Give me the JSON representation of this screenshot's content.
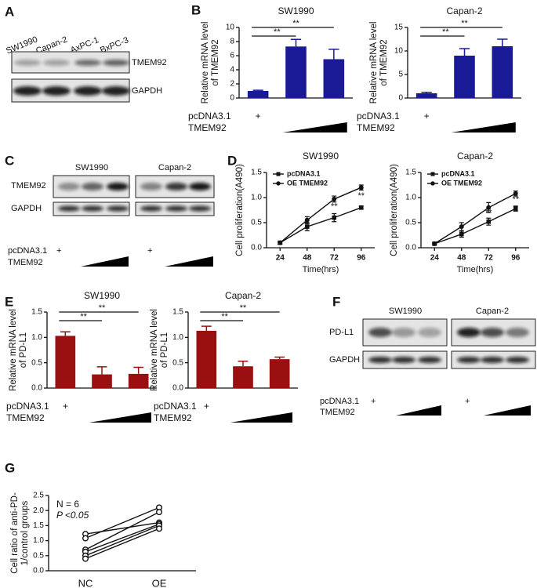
{
  "panel_labels": [
    "A",
    "B",
    "C",
    "D",
    "E",
    "F",
    "G"
  ],
  "blot_a": {
    "lanes": [
      "SW1990",
      "Capan-2",
      "AxPC-1",
      "BxPC-3"
    ],
    "bands": [
      "TMEM92",
      "GAPDH"
    ]
  },
  "blot_c": {
    "groups": [
      "SW1990",
      "Capan-2"
    ],
    "bands": [
      "TMEM92",
      "GAPDH"
    ],
    "rows": [
      "pcDNA3.1",
      "TMEM92"
    ],
    "control": [
      "+",
      "+"
    ]
  },
  "blot_f": {
    "groups": [
      "SW1990",
      "Capan-2"
    ],
    "bands": [
      "PD-L1",
      "GAPDH"
    ],
    "rows": [
      "pcDNA3.1",
      "TMEM92"
    ],
    "control": [
      "+",
      "+"
    ]
  },
  "chart_data": [
    {
      "type": "bar",
      "title": "SW1990",
      "ylabel": [
        "Relative mRNA level",
        "of TMEM92"
      ],
      "categories": [
        "+",
        null,
        null
      ],
      "row_labels": [
        "pcDNA3.1",
        "TMEM92"
      ],
      "values": [
        1.0,
        7.3,
        5.5
      ],
      "errors": [
        0.1,
        1.0,
        1.4
      ],
      "color": "#1a1a96",
      "ylim": [
        0,
        10
      ],
      "yticks": [
        0,
        2,
        4,
        6,
        8,
        10
      ],
      "annotations": [
        "**",
        "**"
      ]
    },
    {
      "type": "bar",
      "title": "Capan-2",
      "ylabel": [
        "Relative mRNA level",
        "of TMEM92"
      ],
      "categories": [
        "+",
        null,
        null
      ],
      "row_labels": [
        "pcDNA3.1",
        "TMEM92"
      ],
      "values": [
        1.0,
        9.0,
        11.0
      ],
      "errors": [
        0.2,
        1.5,
        1.5
      ],
      "color": "#1a1a96",
      "ylim": [
        0,
        15
      ],
      "yticks": [
        0,
        5,
        10,
        15
      ],
      "annotations": [
        "**",
        "**"
      ]
    },
    {
      "type": "line",
      "title": "SW1990",
      "xlabel": "Time(hrs)",
      "ylabel": [
        "Cell proliferation(A490)"
      ],
      "x": [
        24,
        48,
        72,
        96
      ],
      "series": [
        {
          "name": "pcDNA3.1",
          "color": "#111111",
          "marker": "square",
          "values": [
            0.1,
            0.42,
            0.6,
            0.8
          ],
          "errors": [
            0.03,
            0.08,
            0.08,
            0.03
          ]
        },
        {
          "name": "OE TMEM92",
          "color": "#111111",
          "marker": "circle",
          "values": [
            0.1,
            0.55,
            0.97,
            1.2
          ],
          "errors": [
            0.03,
            0.07,
            0.06,
            0.05
          ]
        }
      ],
      "xlim": [
        12,
        108
      ],
      "xticks": [
        24,
        48,
        72,
        96
      ],
      "ylim": [
        0,
        1.5
      ],
      "yticks": [
        {
          "value": 0,
          "label": "0.0"
        },
        0.5,
        {
          "value": 1,
          "label": "1.0"
        },
        1.5
      ],
      "legend": "upper-left",
      "annotations": [
        "**",
        "**"
      ]
    },
    {
      "type": "line",
      "title": "Capan-2",
      "xlabel": "Time(hrs)",
      "ylabel": [
        "Cell proliferation(A490)"
      ],
      "x": [
        24,
        48,
        72,
        96
      ],
      "series": [
        {
          "name": "pcDNA3.1",
          "color": "#111111",
          "marker": "square",
          "values": [
            0.08,
            0.27,
            0.52,
            0.78
          ],
          "errors": [
            0.02,
            0.06,
            0.07,
            0.05
          ]
        },
        {
          "name": "OE TMEM92",
          "color": "#111111",
          "marker": "circle",
          "values": [
            0.08,
            0.42,
            0.8,
            1.08
          ],
          "errors": [
            0.02,
            0.08,
            0.1,
            0.05
          ]
        }
      ],
      "xlim": [
        12,
        108
      ],
      "xticks": [
        24,
        48,
        72,
        96
      ],
      "ylim": [
        0,
        1.5
      ],
      "yticks": [
        {
          "value": 0,
          "label": "0.0"
        },
        0.5,
        {
          "value": 1,
          "label": "1.0"
        },
        1.5
      ],
      "legend": "upper-left",
      "annotations": [
        "**",
        "**"
      ]
    },
    {
      "type": "bar",
      "title": "SW1990",
      "ylabel": [
        "Relative mRNA level",
        "of PD-L1"
      ],
      "categories": [
        "+",
        null,
        null
      ],
      "row_labels": [
        "pcDNA3.1",
        "TMEM92"
      ],
      "values": [
        1.03,
        0.27,
        0.28
      ],
      "errors": [
        0.08,
        0.15,
        0.13
      ],
      "color": "#9a1010",
      "ylim": [
        0,
        1.5
      ],
      "yticks": [
        {
          "value": 0,
          "label": "0.0"
        },
        0.5,
        {
          "value": 1,
          "label": "1.0"
        },
        1.5
      ],
      "annotations": [
        "**",
        "**"
      ]
    },
    {
      "type": "bar",
      "title": "Capan-2",
      "ylabel": [
        "Relative mRNA level",
        "of PD-L1"
      ],
      "categories": [
        "+",
        null,
        null
      ],
      "row_labels": [
        "pcDNA3.1",
        "TMEM92"
      ],
      "values": [
        1.13,
        0.43,
        0.57
      ],
      "errors": [
        0.09,
        0.1,
        0.04
      ],
      "color": "#9a1010",
      "ylim": [
        0,
        1.5
      ],
      "yticks": [
        {
          "value": 0,
          "label": "0.0"
        },
        0.5,
        {
          "value": 1,
          "label": "1.0"
        },
        1.5
      ],
      "annotations": [
        "**",
        "**"
      ]
    },
    {
      "type": "line",
      "ylabel": [
        "Cell ratio of anti-PD-",
        "1/control groups"
      ],
      "categories": [
        "NC",
        "OE"
      ],
      "series": [
        {
          "color": "#111111",
          "values": [
            1.22,
            1.6
          ]
        },
        {
          "color": "#111111",
          "values": [
            1.08,
            2.1
          ]
        },
        {
          "color": "#111111",
          "values": [
            0.7,
            1.95
          ]
        },
        {
          "color": "#111111",
          "values": [
            0.63,
            1.55
          ]
        },
        {
          "color": "#111111",
          "values": [
            0.5,
            1.5
          ]
        },
        {
          "color": "#111111",
          "values": [
            0.4,
            1.4
          ]
        }
      ],
      "ylim": [
        0,
        2.5
      ],
      "yticks": [
        {
          "value": 0,
          "label": "0.0"
        },
        0.5,
        {
          "value": 1,
          "label": "1.0"
        },
        1.5,
        {
          "value": 2,
          "label": "2.0"
        },
        2.5
      ],
      "annotations": [
        "N = 6",
        "P <0.05"
      ]
    }
  ]
}
